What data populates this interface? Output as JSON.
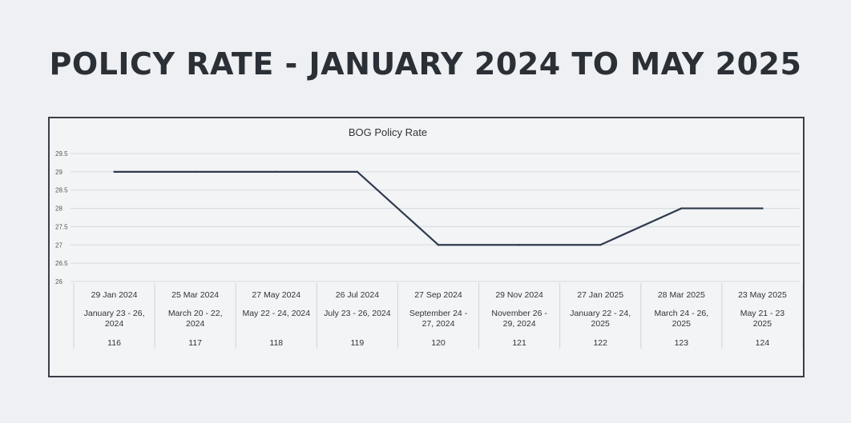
{
  "page": {
    "title": "POLICY RATE - JANUARY 2024 TO MAY 2025"
  },
  "colors": {
    "line": "#2f3a4c",
    "grid": "#d6d9de",
    "table_border": "#d0d3d8"
  },
  "chart_data": {
    "type": "line",
    "title": "BOG Policy Rate",
    "xlabel": "",
    "ylabel": "",
    "ylim": [
      26,
      29.5
    ],
    "yticks": [
      "29.5",
      "29",
      "28.5",
      "28",
      "27.5",
      "27",
      "26.5",
      "26"
    ],
    "ytick_values": [
      29.5,
      29,
      28.5,
      28,
      27.5,
      27,
      26.5,
      26
    ],
    "grid": true,
    "categories": [
      {
        "date": "29 Jan 2024",
        "meeting": [
          "January 23 - 26,",
          "2024"
        ],
        "number": "116"
      },
      {
        "date": "25 Mar 2024",
        "meeting": [
          "March 20 - 22,",
          "2024"
        ],
        "number": "117"
      },
      {
        "date": "27 May 2024",
        "meeting": [
          "May 22 - 24, 2024"
        ],
        "number": "118"
      },
      {
        "date": "26 Jul 2024",
        "meeting": [
          "July 23 - 26, 2024"
        ],
        "number": "119"
      },
      {
        "date": "27 Sep 2024",
        "meeting": [
          "September 24 -",
          "27, 2024"
        ],
        "number": "120"
      },
      {
        "date": "29 Nov 2024",
        "meeting": [
          "November 26 -",
          "29, 2024"
        ],
        "number": "121"
      },
      {
        "date": "27 Jan 2025",
        "meeting": [
          "January 22 - 24,",
          "2025"
        ],
        "number": "122"
      },
      {
        "date": "28 Mar 2025",
        "meeting": [
          "March 24 - 26,",
          "2025"
        ],
        "number": "123"
      },
      {
        "date": "23 May 2025",
        "meeting": [
          "May 21 - 23",
          "2025"
        ],
        "number": "124"
      }
    ],
    "series": [
      {
        "values": [
          29,
          29,
          29,
          29,
          27,
          27,
          27,
          28,
          28
        ]
      }
    ]
  }
}
